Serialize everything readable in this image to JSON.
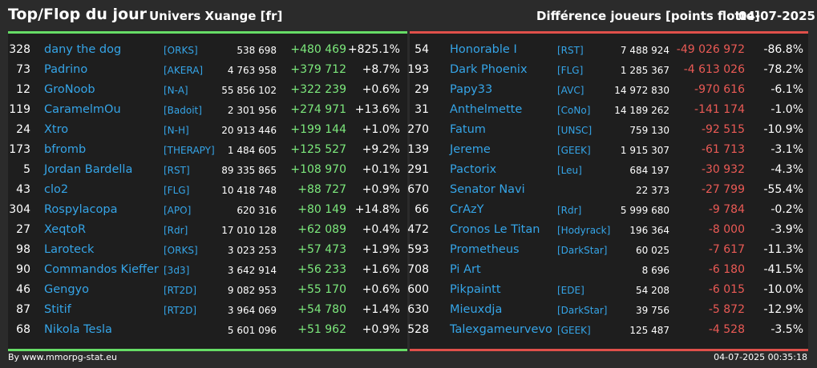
{
  "header": {
    "title": "Top/Flop du jour",
    "universe": "Univers Xuange [fr]",
    "metric": "Différence joueurs [points flotte]",
    "date": "04-07-2025"
  },
  "colors": {
    "top_accent": "#66dd66",
    "flop_accent": "#e0504a",
    "name_color": "#35a5e8",
    "gain_color": "#7ce87c",
    "loss_color": "#ea5a55"
  },
  "top": [
    {
      "rank": "328",
      "name": "dany the dog",
      "guild": "[ORKS]",
      "points": "538 698",
      "delta": "+480 469",
      "pct": "+825.1%"
    },
    {
      "rank": "73",
      "name": "Padrino",
      "guild": "[AKERA]",
      "points": "4 763 958",
      "delta": "+379 712",
      "pct": "+8.7%"
    },
    {
      "rank": "12",
      "name": "GroNoob",
      "guild": "[N-A]",
      "points": "55 856 102",
      "delta": "+322 239",
      "pct": "+0.6%"
    },
    {
      "rank": "119",
      "name": "CaramelmOu",
      "guild": "[Badoit]",
      "points": "2 301 956",
      "delta": "+274 971",
      "pct": "+13.6%"
    },
    {
      "rank": "24",
      "name": "Xtro",
      "guild": "[N-H]",
      "points": "20 913 446",
      "delta": "+199 144",
      "pct": "+1.0%"
    },
    {
      "rank": "173",
      "name": "bfromb",
      "guild": "[THERAPY]",
      "points": "1 484 605",
      "delta": "+125 527",
      "pct": "+9.2%"
    },
    {
      "rank": "5",
      "name": "Jordan Bardella",
      "guild": "[RST]",
      "points": "89 335 865",
      "delta": "+108 970",
      "pct": "+0.1%"
    },
    {
      "rank": "43",
      "name": "clo2",
      "guild": "[FLG]",
      "points": "10 418 748",
      "delta": "+88 727",
      "pct": "+0.9%"
    },
    {
      "rank": "304",
      "name": "Rospylacopa",
      "guild": "[APO]",
      "points": "620 316",
      "delta": "+80 149",
      "pct": "+14.8%"
    },
    {
      "rank": "27",
      "name": "XeqtoR",
      "guild": "[Rdr]",
      "points": "17 010 128",
      "delta": "+62 089",
      "pct": "+0.4%"
    },
    {
      "rank": "98",
      "name": "Laroteck",
      "guild": "[ORKS]",
      "points": "3 023 253",
      "delta": "+57 473",
      "pct": "+1.9%"
    },
    {
      "rank": "90",
      "name": "Commandos Kieffer",
      "guild": "[3d3]",
      "points": "3 642 914",
      "delta": "+56 233",
      "pct": "+1.6%"
    },
    {
      "rank": "46",
      "name": "Gengyo",
      "guild": "[RT2D]",
      "points": "9 082 953",
      "delta": "+55 170",
      "pct": "+0.6%"
    },
    {
      "rank": "87",
      "name": "Stitif",
      "guild": "[RT2D]",
      "points": "3 964 069",
      "delta": "+54 780",
      "pct": "+1.4%"
    },
    {
      "rank": "68",
      "name": "Nikola Tesla",
      "guild": "",
      "points": "5 601 096",
      "delta": "+51 962",
      "pct": "+0.9%"
    }
  ],
  "flop": [
    {
      "rank": "54",
      "name": "Honorable I",
      "guild": "[RST]",
      "points": "7 488 924",
      "delta": "-49 026 972",
      "pct": "-86.8%"
    },
    {
      "rank": "193",
      "name": "Dark Phoenix",
      "guild": "[FLG]",
      "points": "1 285 367",
      "delta": "-4 613 026",
      "pct": "-78.2%"
    },
    {
      "rank": "29",
      "name": "Papy33",
      "guild": "[AVC]",
      "points": "14 972 830",
      "delta": "-970 616",
      "pct": "-6.1%"
    },
    {
      "rank": "31",
      "name": "Anthelmette",
      "guild": "[CoNo]",
      "points": "14 189 262",
      "delta": "-141 174",
      "pct": "-1.0%"
    },
    {
      "rank": "270",
      "name": "Fatum",
      "guild": "[UNSC]",
      "points": "759 130",
      "delta": "-92 515",
      "pct": "-10.9%"
    },
    {
      "rank": "139",
      "name": "Jereme",
      "guild": "[GEEK]",
      "points": "1 915 307",
      "delta": "-61 713",
      "pct": "-3.1%"
    },
    {
      "rank": "291",
      "name": "Pactorix",
      "guild": "[Leu]",
      "points": "684 197",
      "delta": "-30 932",
      "pct": "-4.3%"
    },
    {
      "rank": "670",
      "name": "Senator Navi",
      "guild": "",
      "points": "22 373",
      "delta": "-27 799",
      "pct": "-55.4%"
    },
    {
      "rank": "66",
      "name": "CrAzY",
      "guild": "[Rdr]",
      "points": "5 999 680",
      "delta": "-9 784",
      "pct": "-0.2%"
    },
    {
      "rank": "472",
      "name": "Cronos Le Titan",
      "guild": "[Hodyrack]",
      "points": "196 364",
      "delta": "-8 000",
      "pct": "-3.9%"
    },
    {
      "rank": "593",
      "name": "Prometheus",
      "guild": "[DarkStar]",
      "points": "60 025",
      "delta": "-7 617",
      "pct": "-11.3%"
    },
    {
      "rank": "708",
      "name": "Pi Art",
      "guild": "",
      "points": "8 696",
      "delta": "-6 180",
      "pct": "-41.5%"
    },
    {
      "rank": "600",
      "name": "Pikpaintt",
      "guild": "[EDE]",
      "points": "54 208",
      "delta": "-6 015",
      "pct": "-10.0%"
    },
    {
      "rank": "630",
      "name": "Mieuxdja",
      "guild": "[DarkStar]",
      "points": "39 756",
      "delta": "-5 872",
      "pct": "-12.9%"
    },
    {
      "rank": "528",
      "name": "Talexgameurvevo",
      "guild": "[GEEK]",
      "points": "125 487",
      "delta": "-4 528",
      "pct": "-3.5%"
    }
  ],
  "footer": {
    "source": "By www.mmorpg-stat.eu",
    "timestamp": "04-07-2025 00:35:18"
  }
}
